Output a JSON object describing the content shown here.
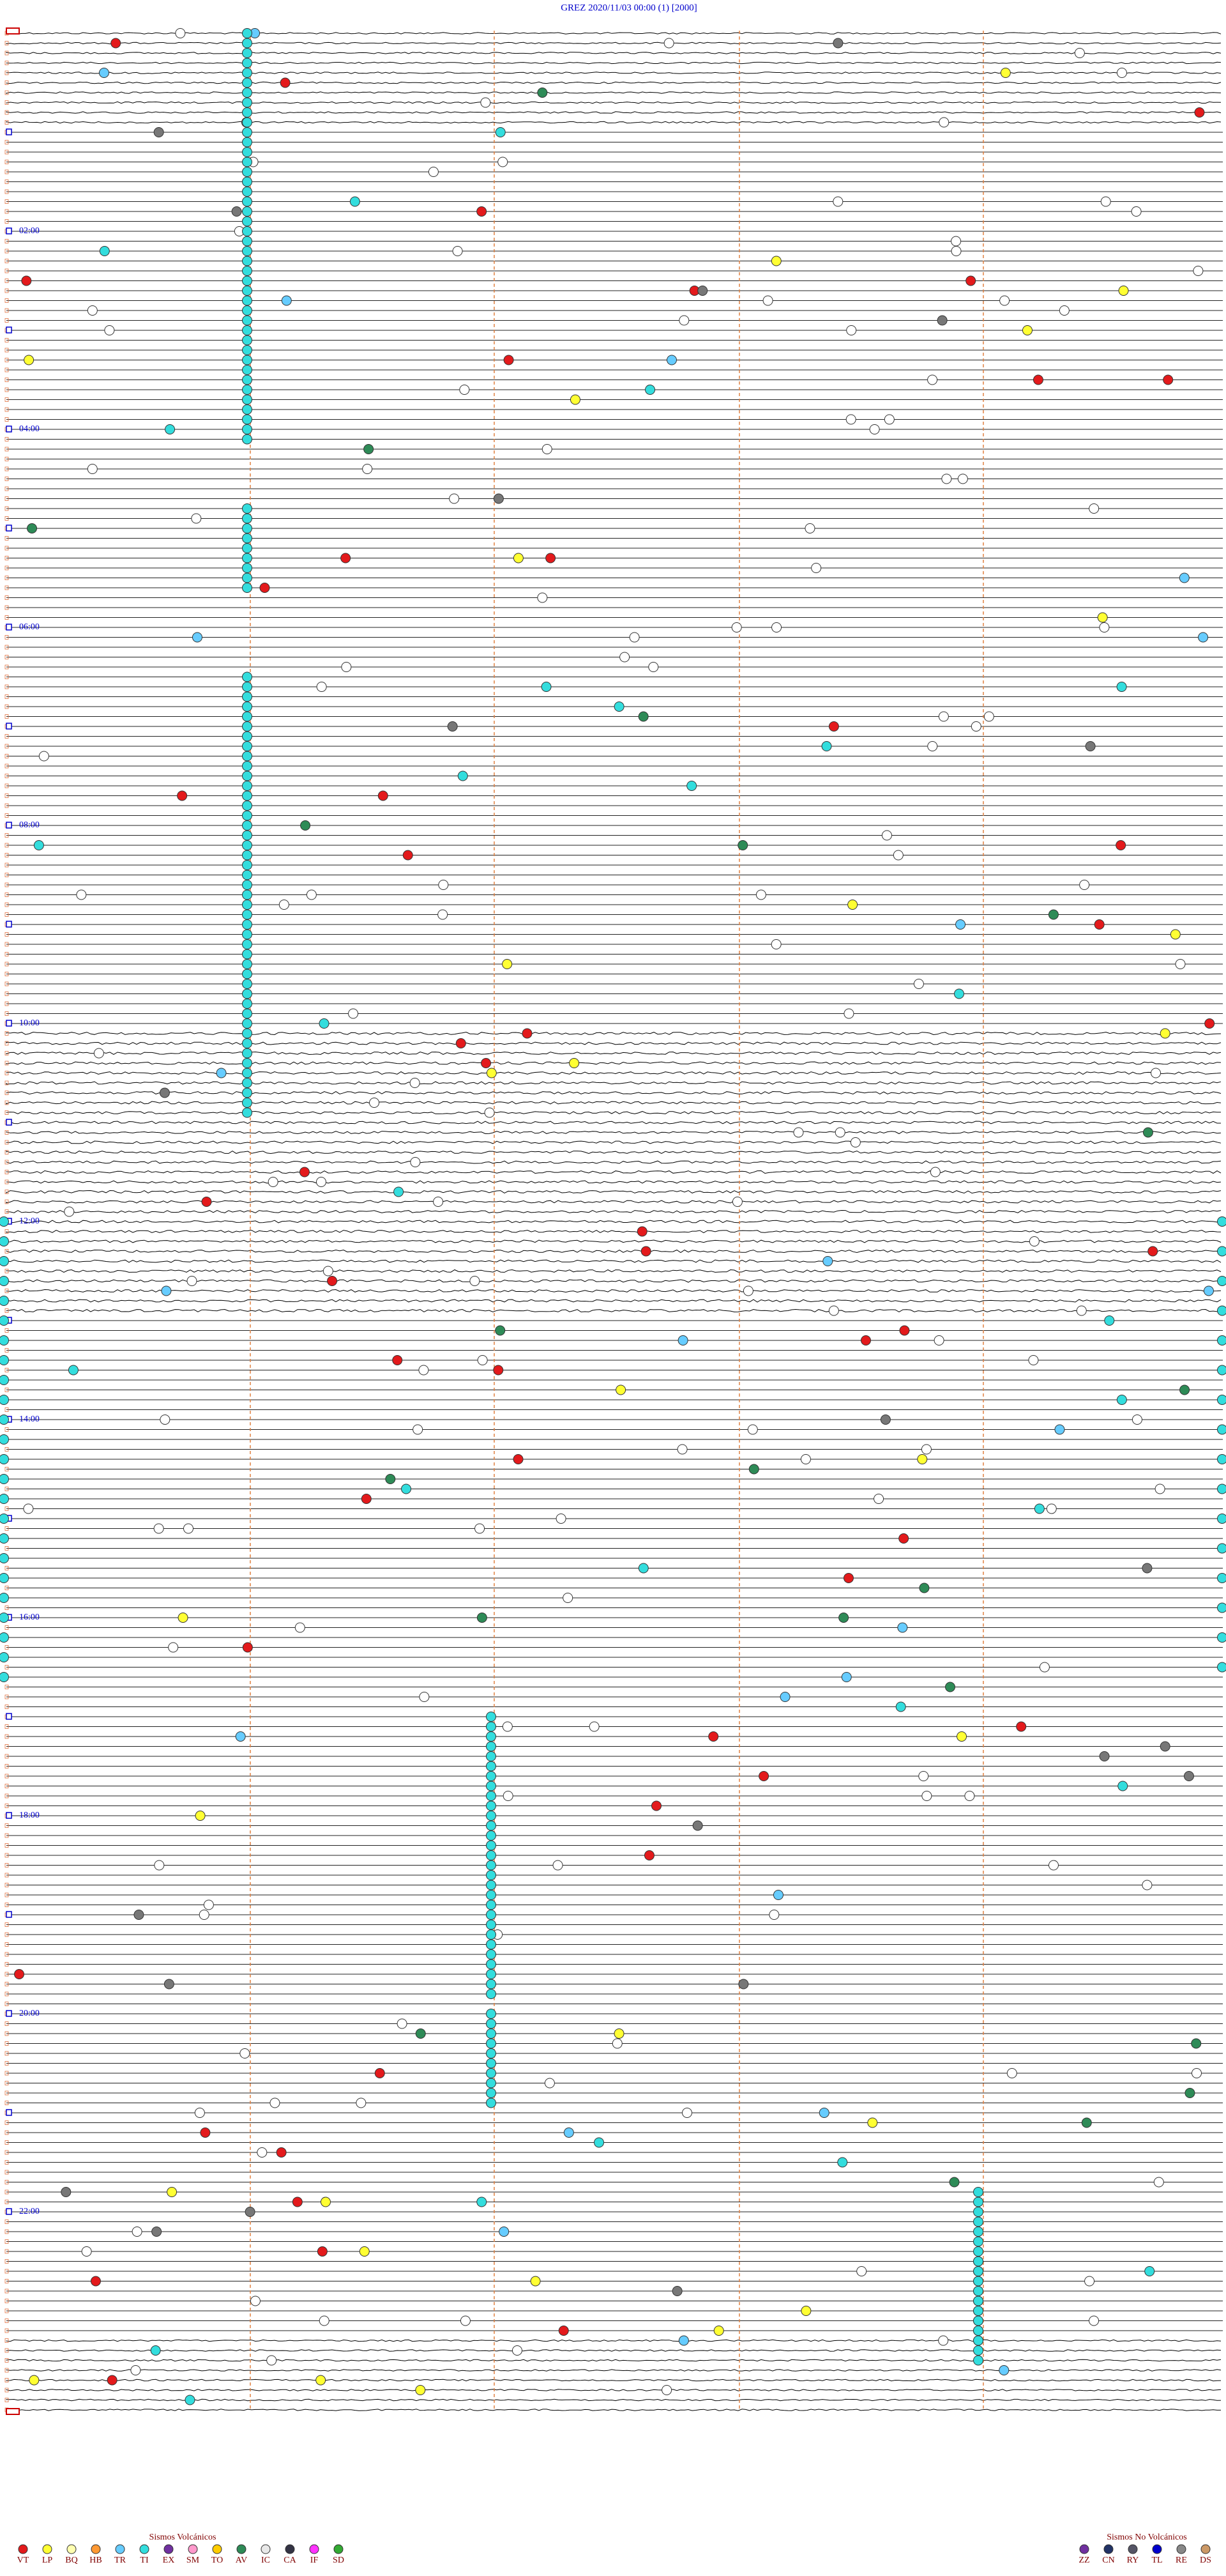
{
  "header": {
    "title": "GREZ    2020/11/03 00:00    (1)    [2000]"
  },
  "hour_labels": [
    "02:00",
    "04:00",
    "06:00",
    "08:00",
    "10:00",
    "12:00",
    "14:00",
    "16:00",
    "18:00",
    "20:00",
    "22:00"
  ],
  "legend_volcanic": {
    "title": "Sismos Volcánicos",
    "items": [
      {
        "code": "VT",
        "color": "#e31a1c"
      },
      {
        "code": "LP",
        "color": "#ffff33"
      },
      {
        "code": "BQ",
        "color": "#ffffb0"
      },
      {
        "code": "HB",
        "color": "#ff9933"
      },
      {
        "code": "TR",
        "color": "#66ccff"
      },
      {
        "code": "TI",
        "color": "#33dddd"
      },
      {
        "code": "EX",
        "color": "#7030a0"
      },
      {
        "code": "SM",
        "color": "#ff99cc"
      },
      {
        "code": "TO",
        "color": "#ffcc00"
      },
      {
        "code": "AV",
        "color": "#2e8b57"
      },
      {
        "code": "IC",
        "color": "#e8e8e8"
      },
      {
        "code": "CA",
        "color": "#333344"
      },
      {
        "code": "IF",
        "color": "#ff33ff"
      },
      {
        "code": "SD",
        "color": "#33aa33"
      }
    ]
  },
  "legend_nonvolcanic": {
    "title": "Sismos No Volcánicos",
    "items": [
      {
        "code": "ZZ",
        "color": "#7030a0"
      },
      {
        "code": "CN",
        "color": "#223366"
      },
      {
        "code": "RY",
        "color": "#555566"
      },
      {
        "code": "TL",
        "color": "#0000cc"
      },
      {
        "code": "RE",
        "color": "#888888"
      },
      {
        "code": "DS",
        "color": "#cc9966"
      }
    ]
  }
}
